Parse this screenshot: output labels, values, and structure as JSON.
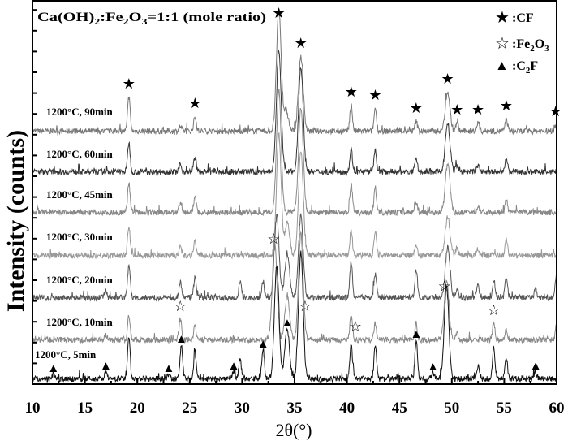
{
  "chart_data": {
    "type": "line",
    "title": "",
    "annotation": "Ca(OH)2:Fe2O3=1:1 (mole ratio)",
    "annotation_parts": {
      "a": "Ca(OH)",
      "s1": "2",
      "b": ":Fe",
      "s2": "2",
      "c": "O",
      "s3": "3",
      "d": "=1:1 (mole ratio)"
    },
    "xlabel": "2θ(°)",
    "xlabel_parts": {
      "main": "2θ(",
      "sup": "o",
      "end": ")"
    },
    "ylabel": "Intensity (counts)",
    "xlim": [
      10,
      60
    ],
    "x_ticks": [
      10,
      15,
      20,
      25,
      30,
      35,
      40,
      45,
      50,
      55,
      60
    ],
    "y_tick_labels": false,
    "grid": false,
    "legend_placement": "top-right",
    "legend": [
      {
        "symbol": "filled-star",
        "glyph": "★",
        "label": ":CF"
      },
      {
        "symbol": "open-star",
        "glyph": "☆",
        "label": ":Fe",
        "sub": "2",
        "label2": "O",
        "sub2": "3"
      },
      {
        "symbol": "filled-triangle",
        "glyph": "▲",
        "label": ":C",
        "sub": "2",
        "label2": "F"
      }
    ],
    "series": [
      {
        "name": "1200°C, 90min",
        "label_main": "1200",
        "label_sup": "o",
        "label_rest": "C, 90min",
        "color": "#777777",
        "peaks": [
          [
            19.2,
            42
          ],
          [
            24.1,
            6
          ],
          [
            25.5,
            18
          ],
          [
            33.5,
            150
          ],
          [
            34.2,
            25
          ],
          [
            35.6,
            92
          ],
          [
            40.4,
            32
          ],
          [
            42.7,
            28
          ],
          [
            46.6,
            12
          ],
          [
            49.6,
            48
          ],
          [
            50.5,
            10
          ],
          [
            52.5,
            10
          ],
          [
            55.2,
            15
          ],
          [
            59.9,
            8
          ]
        ]
      },
      {
        "name": "1200°C, 60min",
        "label_main": "1200",
        "label_sup": "o",
        "label_rest": "C, 60min",
        "color": "#333333",
        "peaks": [
          [
            19.2,
            36
          ],
          [
            24.1,
            8
          ],
          [
            25.5,
            18
          ],
          [
            33.5,
            150
          ],
          [
            35.6,
            130
          ],
          [
            40.4,
            28
          ],
          [
            42.7,
            25
          ],
          [
            46.6,
            15
          ],
          [
            49.6,
            60
          ],
          [
            50.5,
            8
          ],
          [
            52.5,
            8
          ],
          [
            55.2,
            15
          ]
        ]
      },
      {
        "name": "1200°C, 45min",
        "label_main": "1200",
        "label_sup": "o",
        "label_rest": "C, 45min",
        "color": "#888888",
        "peaks": [
          [
            19.2,
            36
          ],
          [
            24.1,
            10
          ],
          [
            25.5,
            20
          ],
          [
            33.5,
            150
          ],
          [
            35.6,
            130
          ],
          [
            40.4,
            35
          ],
          [
            42.7,
            30
          ],
          [
            46.6,
            12
          ],
          [
            49.6,
            60
          ],
          [
            52.5,
            8
          ],
          [
            55.2,
            15
          ]
        ]
      },
      {
        "name": "1200°C, 30min",
        "label_main": "1200",
        "label_sup": "o",
        "label_rest": "C, 30min",
        "color": "#999999",
        "peaks": [
          [
            19.2,
            36
          ],
          [
            24.1,
            10
          ],
          [
            25.5,
            18
          ],
          [
            33.5,
            150
          ],
          [
            34.3,
            40
          ],
          [
            35.6,
            130
          ],
          [
            40.4,
            30
          ],
          [
            42.7,
            30
          ],
          [
            46.6,
            14
          ],
          [
            49.6,
            48
          ],
          [
            50.5,
            10
          ],
          [
            52.5,
            8
          ],
          [
            55.2,
            22
          ]
        ]
      },
      {
        "name": "1200°C, 20min",
        "label_main": "1200",
        "label_sup": "o",
        "label_rest": "C, 20min",
        "color": "#555555",
        "peaks": [
          [
            17.0,
            8
          ],
          [
            19.2,
            40
          ],
          [
            24.1,
            20
          ],
          [
            25.5,
            25
          ],
          [
            29.8,
            20
          ],
          [
            32.0,
            20
          ],
          [
            33.3,
            100
          ],
          [
            34.3,
            55
          ],
          [
            35.6,
            100
          ],
          [
            40.4,
            45
          ],
          [
            42.7,
            30
          ],
          [
            46.6,
            35
          ],
          [
            49.6,
            62
          ],
          [
            50.5,
            12
          ],
          [
            52.5,
            15
          ],
          [
            54.0,
            20
          ],
          [
            55.2,
            25
          ],
          [
            58.0,
            10
          ],
          [
            60.0,
            30
          ]
        ]
      },
      {
        "name": "1200°C, 10min",
        "label_main": "1200",
        "label_sup": "o",
        "label_rest": "C, 10min",
        "color": "#888888",
        "peaks": [
          [
            17.0,
            6
          ],
          [
            19.2,
            30
          ],
          [
            24.1,
            25
          ],
          [
            25.5,
            18
          ],
          [
            33.1,
            120
          ],
          [
            34.3,
            55
          ],
          [
            35.6,
            130
          ],
          [
            40.4,
            28
          ],
          [
            42.7,
            20
          ],
          [
            46.6,
            18
          ],
          [
            49.5,
            75
          ],
          [
            50.5,
            10
          ],
          [
            54.0,
            20
          ],
          [
            55.2,
            12
          ],
          [
            60.0,
            20
          ]
        ]
      },
      {
        "name": "1200°C, 5min",
        "label_main": "1200",
        "label_sup": "o",
        "label_rest": "C, 5min",
        "color": "#111111",
        "peaks": [
          [
            12.0,
            6
          ],
          [
            17.0,
            9
          ],
          [
            19.2,
            52
          ],
          [
            23.0,
            6
          ],
          [
            24.2,
            42
          ],
          [
            25.5,
            32
          ],
          [
            29.2,
            9
          ],
          [
            29.8,
            26
          ],
          [
            32.0,
            36
          ],
          [
            33.3,
            140
          ],
          [
            34.3,
            62
          ],
          [
            35.6,
            155
          ],
          [
            40.4,
            42
          ],
          [
            42.7,
            42
          ],
          [
            46.6,
            48
          ],
          [
            48.2,
            8
          ],
          [
            49.5,
            115
          ],
          [
            52.5,
            15
          ],
          [
            54.0,
            40
          ],
          [
            55.2,
            25
          ],
          [
            58.0,
            9
          ]
        ]
      }
    ],
    "markers": [
      {
        "phase": "CF",
        "symbol": "filled-star",
        "series": "1200°C, 90min",
        "x": [
          19.2,
          25.5,
          33.5,
          35.6,
          40.4,
          42.7,
          46.6,
          49.6,
          50.5,
          52.5,
          55.2,
          59.9
        ]
      },
      {
        "phase": "Fe2O3",
        "symbol": "open-star",
        "series": "1200°C, 10min",
        "x": [
          24.1,
          33.0,
          36.0,
          40.8,
          49.3,
          54.0
        ]
      },
      {
        "phase": "C2F",
        "symbol": "filled-triangle",
        "series": "1200°C, 5min",
        "x": [
          12.0,
          17.0,
          23.0,
          24.2,
          29.2,
          32.0,
          34.3,
          46.6,
          48.2,
          58.0
        ]
      }
    ]
  }
}
